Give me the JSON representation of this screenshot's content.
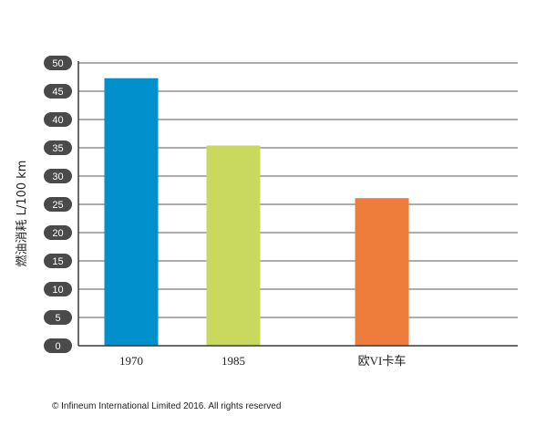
{
  "chart_data": {
    "type": "bar",
    "title": "",
    "xlabel": "",
    "ylabel": "燃油消耗  L/100 km",
    "ylim": [
      0,
      50
    ],
    "yticks": [
      0,
      5,
      10,
      15,
      20,
      25,
      30,
      35,
      40,
      45,
      50
    ],
    "grid": true,
    "legend": "none",
    "categories": [
      "1970",
      "1985",
      "欧VI卡车"
    ],
    "values": [
      47.3,
      35.4,
      26.1
    ],
    "colors": [
      "#0090cc",
      "#c8d95e",
      "#ee7d3b"
    ]
  },
  "footer": {
    "copyright": "© Infineum International Limited 2016. All rights reserved"
  }
}
